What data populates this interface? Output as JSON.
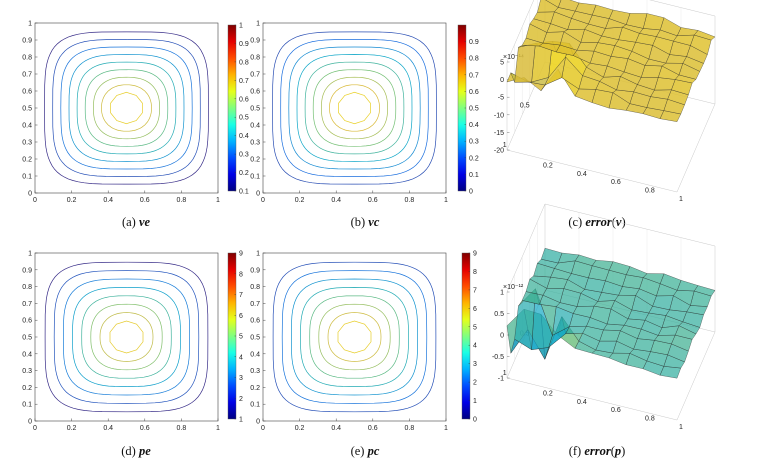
{
  "chart_data": [
    {
      "id": "a",
      "type": "contour",
      "caption_label": "(a)",
      "caption_var": "ve",
      "caption_suffix": "",
      "x_ticks": [
        "0",
        "0.2",
        "0.4",
        "0.6",
        "0.8",
        "1"
      ],
      "y_ticks": [
        "0",
        "0.1",
        "0.2",
        "0.3",
        "0.4",
        "0.5",
        "0.6",
        "0.7",
        "0.8",
        "0.9",
        "1"
      ],
      "xlim": [
        0,
        1
      ],
      "ylim": [
        0,
        1
      ],
      "levels": [
        0.1,
        0.2,
        0.3,
        0.4,
        0.5,
        0.6,
        0.7,
        0.8,
        0.9
      ],
      "colorbar_ticks": [
        "0.1",
        "0.2",
        "0.3",
        "0.4",
        "0.5",
        "0.6",
        "0.7",
        "0.8",
        "0.9",
        "1"
      ],
      "colorbar_range": [
        0.1,
        1
      ],
      "colorbar_exponent": ""
    },
    {
      "id": "b",
      "type": "contour",
      "caption_label": "(b)",
      "caption_var": "vc",
      "caption_suffix": "",
      "x_ticks": [
        "0",
        "0.2",
        "0.4",
        "0.6",
        "0.8",
        "1"
      ],
      "y_ticks": [
        "0",
        "0.1",
        "0.2",
        "0.3",
        "0.4",
        "0.5",
        "0.6",
        "0.7",
        "0.8",
        "0.9",
        "1"
      ],
      "xlim": [
        0,
        1
      ],
      "ylim": [
        0,
        1
      ],
      "levels": [
        0.1,
        0.2,
        0.3,
        0.4,
        0.5,
        0.6,
        0.7,
        0.8,
        0.9
      ],
      "colorbar_ticks": [
        "0",
        "0.1",
        "0.2",
        "0.3",
        "0.4",
        "0.5",
        "0.6",
        "0.7",
        "0.8",
        "0.9"
      ],
      "colorbar_range": [
        0,
        1
      ],
      "colorbar_exponent": ""
    },
    {
      "id": "c",
      "type": "surface",
      "caption_label": "(c)",
      "caption_var": "error",
      "caption_suffix": "v",
      "z_ticks": [
        "5",
        "0",
        "-5",
        "-10",
        "-15",
        "-20"
      ],
      "zlim": [
        -20,
        5
      ],
      "z_exponent": "×10⁻¹⁴",
      "x_ticks": [
        "0.2",
        "0.4",
        "0.6",
        "0.8",
        "1"
      ],
      "y_ticks": [
        "0.5",
        "1"
      ]
    },
    {
      "id": "d",
      "type": "contour",
      "caption_label": "(d)",
      "caption_var": "pe",
      "caption_suffix": "",
      "x_ticks": [
        "0",
        "0.2",
        "0.4",
        "0.6",
        "0.8",
        "1"
      ],
      "y_ticks": [
        "0",
        "0.1",
        "0.2",
        "0.3",
        "0.4",
        "0.5",
        "0.6",
        "0.7",
        "0.8",
        "0.9",
        "1"
      ],
      "xlim": [
        0,
        1
      ],
      "ylim": [
        0,
        1
      ],
      "levels": [
        1,
        2,
        3,
        4,
        5,
        6,
        7,
        8
      ],
      "colorbar_ticks": [
        "1",
        "2",
        "3",
        "4",
        "5",
        "6",
        "7",
        "8",
        "9"
      ],
      "colorbar_range": [
        1,
        9
      ],
      "colorbar_exponent": ""
    },
    {
      "id": "e",
      "type": "contour",
      "caption_label": "(e)",
      "caption_var": "pc",
      "caption_suffix": "",
      "x_ticks": [
        "0",
        "0.2",
        "0.4",
        "0.6",
        "0.8",
        "1"
      ],
      "y_ticks": [
        "0",
        "0.1",
        "0.2",
        "0.3",
        "0.4",
        "0.5",
        "0.6",
        "0.7",
        "0.8",
        "0.9",
        "1"
      ],
      "xlim": [
        0,
        1
      ],
      "ylim": [
        0,
        1
      ],
      "levels": [
        1,
        2,
        3,
        4,
        5,
        6,
        7,
        8
      ],
      "colorbar_ticks": [
        "0",
        "1",
        "2",
        "3",
        "4",
        "5",
        "6",
        "7",
        "8",
        "9"
      ],
      "colorbar_range": [
        0,
        9
      ],
      "colorbar_exponent": ""
    },
    {
      "id": "f",
      "type": "surface",
      "caption_label": "(f)",
      "caption_var": "error",
      "caption_suffix": "p",
      "z_ticks": [
        "1",
        "0.5",
        "0",
        "-0.5",
        "-1"
      ],
      "zlim": [
        -1,
        1
      ],
      "z_exponent": "×10⁻¹²",
      "x_ticks": [
        "0.2",
        "0.4",
        "0.6",
        "0.8",
        "1"
      ],
      "y_ticks": [
        "0.5",
        "1"
      ]
    }
  ],
  "colors": {
    "axis": "#333333",
    "surface_c": "#b5d43c",
    "surface_f": "#3cb0d4"
  }
}
